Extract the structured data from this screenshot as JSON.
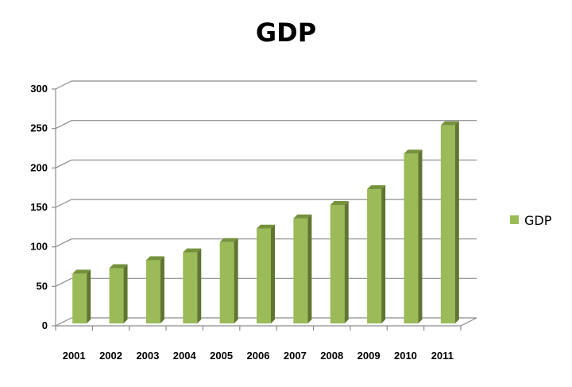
{
  "chart_data": {
    "type": "bar",
    "title": "GDP",
    "xlabel": "",
    "ylabel": "",
    "categories": [
      "2001",
      "2002",
      "2003",
      "2004",
      "2005",
      "2006",
      "2007",
      "2008",
      "2009",
      "2010",
      "2011"
    ],
    "series": [
      {
        "name": "GDP",
        "values": [
          63,
          70,
          80,
          90,
          103,
          120,
          133,
          150,
          170,
          215,
          251
        ],
        "color": "#9BBB59"
      }
    ],
    "ylim": [
      0,
      300
    ],
    "yticks": [
      "0",
      "50",
      "100",
      "150",
      "200",
      "250",
      "300"
    ],
    "grid": true,
    "legend": "right",
    "style": "3d-column"
  }
}
